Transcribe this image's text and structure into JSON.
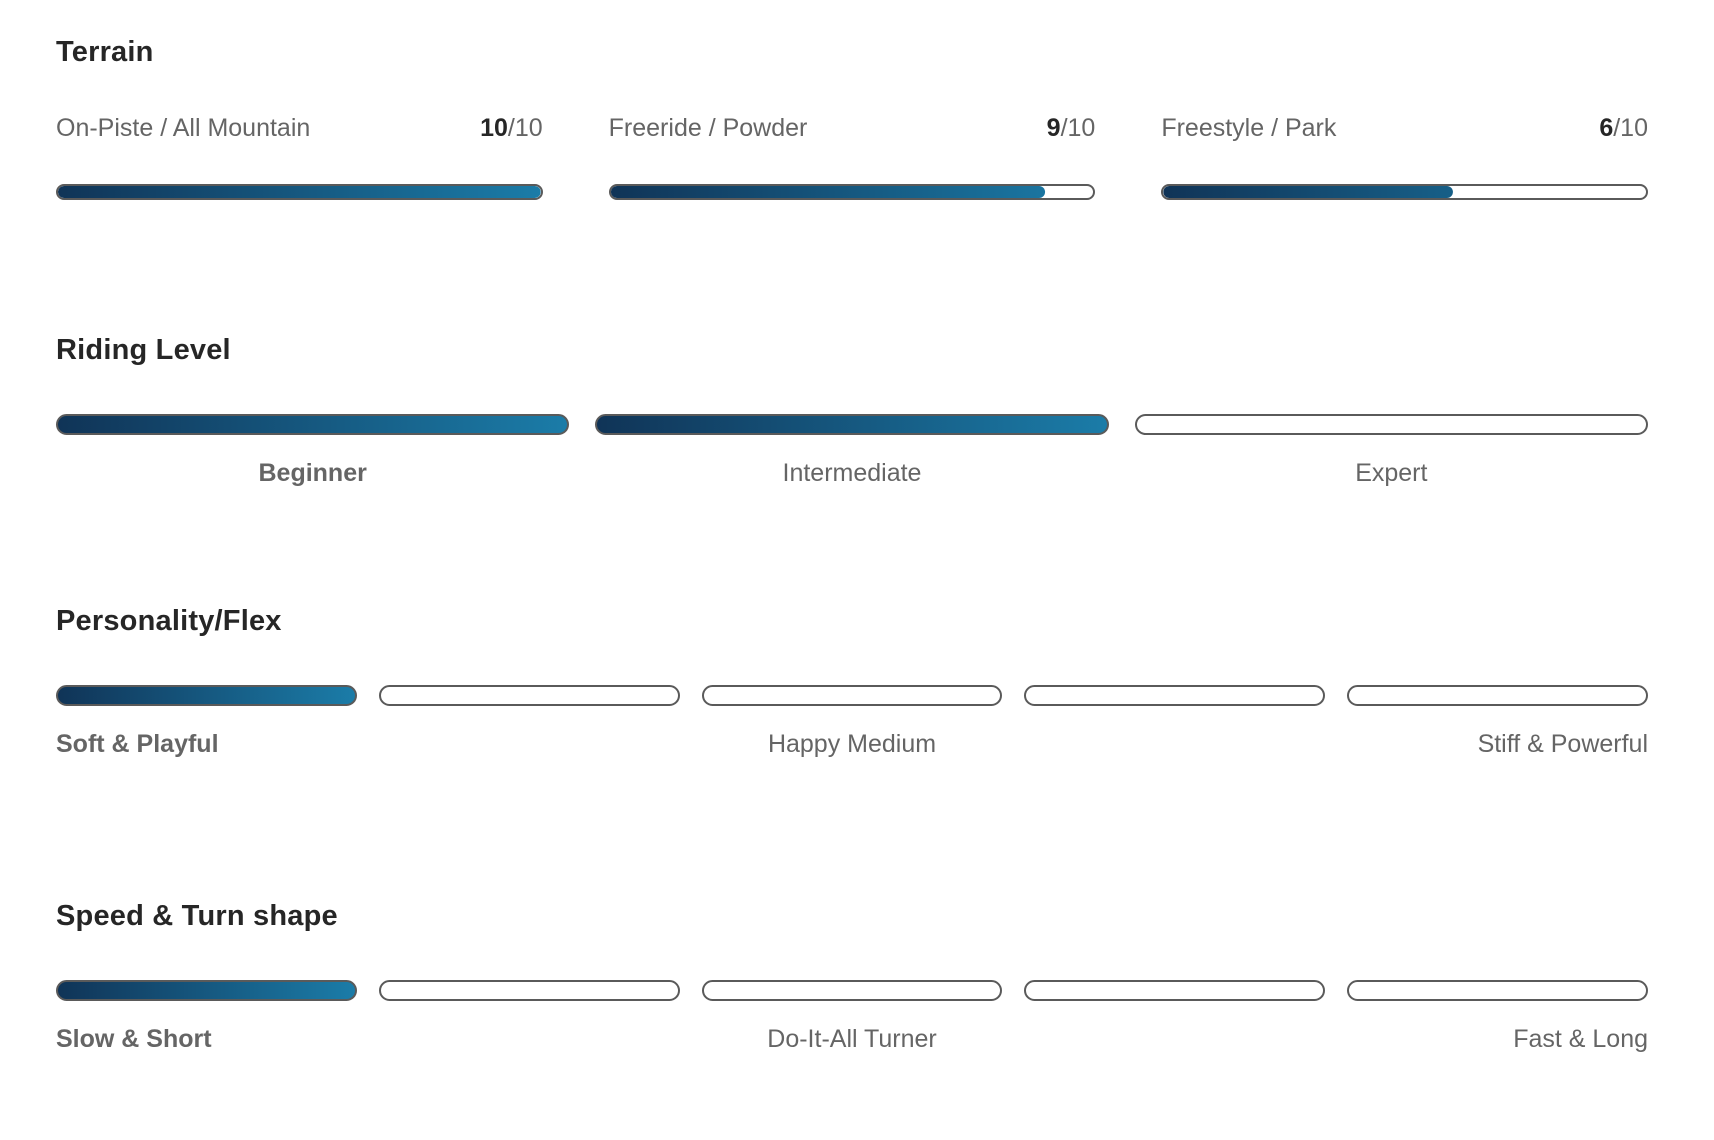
{
  "colors": {
    "page_background": "#ffffff",
    "heading_text": "#262626",
    "label_text": "#656565",
    "value_text": "#262626",
    "bar_gradient_start": "#103457",
    "bar_gradient_end": "#1b7ca8",
    "bar_border": "#5a5a5a",
    "track_background": "#ffffff"
  },
  "sections": {
    "terrain": {
      "title": "Terrain",
      "items": [
        {
          "label": "On-Piste / All Mountain",
          "score_display": "10",
          "denominator": "/10",
          "percent": 100
        },
        {
          "label": "Freeride / Powder",
          "score_display": "9",
          "denominator": "/10",
          "percent": 90
        },
        {
          "label": "Freestyle / Park",
          "score_display": "6",
          "denominator": "/10",
          "percent": 60
        }
      ]
    },
    "riding_level": {
      "title": "Riding Level",
      "segments": [
        true,
        true,
        false
      ],
      "labels": [
        {
          "text": "Beginner",
          "bold": true
        },
        {
          "text": "Intermediate",
          "bold": false
        },
        {
          "text": "Expert",
          "bold": false
        }
      ]
    },
    "personality_flex": {
      "title": "Personality/Flex",
      "segments": [
        true,
        false,
        false,
        false,
        false
      ],
      "labels": [
        {
          "text": "Soft & Playful",
          "bold": true,
          "align": "left"
        },
        {
          "text": "Happy Medium",
          "bold": false,
          "align": "center"
        },
        {
          "text": "Stiff & Powerful",
          "bold": false,
          "align": "right"
        }
      ]
    },
    "speed_turn_shape": {
      "title": "Speed & Turn shape",
      "segments": [
        true,
        false,
        false,
        false,
        false
      ],
      "labels": [
        {
          "text": "Slow & Short",
          "bold": true,
          "align": "left"
        },
        {
          "text": "Do-It-All Turner",
          "bold": false,
          "align": "center"
        },
        {
          "text": "Fast & Long",
          "bold": false,
          "align": "right"
        }
      ]
    }
  }
}
